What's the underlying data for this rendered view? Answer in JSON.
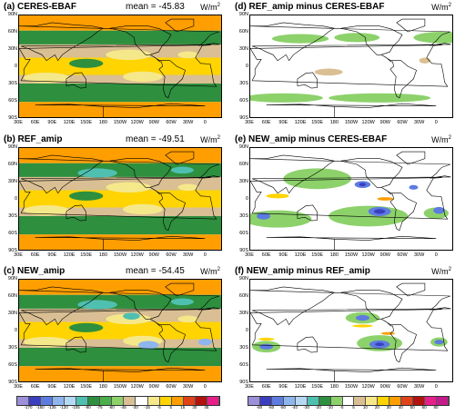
{
  "panels": [
    {
      "id": "a",
      "title": "(a) CERES-EBAF",
      "mean": "mean = -45.83",
      "unit": "W/m",
      "unit_sup": "2",
      "style": "abs"
    },
    {
      "id": "b",
      "title": "(b) REF_amip",
      "mean": "mean = -49.51",
      "unit": "W/m",
      "unit_sup": "2",
      "style": "abs"
    },
    {
      "id": "c",
      "title": "(c) NEW_amip",
      "mean": "mean = -54.45",
      "unit": "W/m",
      "unit_sup": "2",
      "style": "abs"
    },
    {
      "id": "d",
      "title": "(d) REF_amip minus CERES-EBAF",
      "mean": "",
      "unit": "W/m",
      "unit_sup": "2",
      "style": "diff1"
    },
    {
      "id": "e",
      "title": "(e) NEW_amip minus CERES-EBAF",
      "mean": "",
      "unit": "W/m",
      "unit_sup": "2",
      "style": "diff2"
    },
    {
      "id": "f",
      "title": "(f) NEW_amip minus REF_amip",
      "mean": "",
      "unit": "W/m",
      "unit_sup": "2",
      "style": "diff3"
    }
  ],
  "lat_labels": [
    "90N",
    "60N",
    "30N",
    "0",
    "30S",
    "60S",
    "90S"
  ],
  "lon_labels": [
    "30E",
    "60E",
    "90E",
    "120E",
    "150E",
    "180",
    "150W",
    "120W",
    "90W",
    "60W",
    "30W",
    "0"
  ],
  "colorbar_left": {
    "labels": [
      "-170",
      "-150",
      "-135",
      "-120",
      "-105",
      "-90",
      "-75",
      "-60",
      "-45",
      "-30",
      "-15",
      "-5",
      "5",
      "15",
      "30",
      "45"
    ],
    "colors": [
      "#9d8fd8",
      "#3a3fbf",
      "#5d7be0",
      "#8fb5ee",
      "#b5d8f5",
      "#4fc0b0",
      "#2e8f3e",
      "#4aae4a",
      "#8dd16b",
      "#d9bf93",
      "#ffffff",
      "#f5e88a",
      "#ffd400",
      "#ff9e00",
      "#e0421a",
      "#b3130e",
      "#e81e8a"
    ]
  },
  "colorbar_right": {
    "labels": [
      "-80",
      "-60",
      "-50",
      "-40",
      "-30",
      "-20",
      "-10",
      "-5",
      "5",
      "10",
      "20",
      "30",
      "40",
      "50",
      "60",
      "80"
    ],
    "colors": [
      "#9d8fd8",
      "#3a3fbf",
      "#5d7be0",
      "#8fb5ee",
      "#b5d8f5",
      "#4fc0b0",
      "#2e8f3e",
      "#8dd16b",
      "#ffffff",
      "#d9bf93",
      "#f5e88a",
      "#ffd400",
      "#ff9e00",
      "#e0421a",
      "#b3130e",
      "#e81e8a",
      "#c41a8c"
    ]
  }
}
